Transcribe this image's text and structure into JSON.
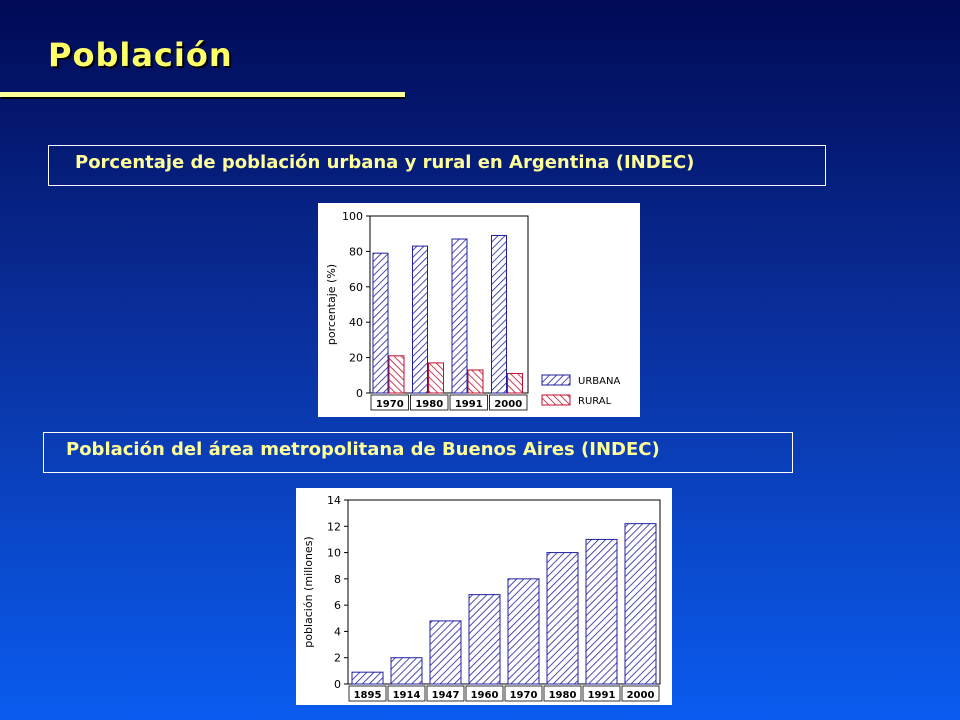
{
  "slide": {
    "title": "Población",
    "caption1": "Porcentaje de población urbana y rural en Argentina (INDEC)",
    "caption2": "Población del área metropolitana de Buenos Aires  (INDEC)"
  },
  "colors": {
    "title": "#ffff66",
    "caption": "#ffff99",
    "urbana": "#2020a0",
    "rural": "#c01030"
  },
  "chart_data": [
    {
      "type": "bar",
      "categories": [
        "1970",
        "1980",
        "1991",
        "2000"
      ],
      "series": [
        {
          "name": "URBANA",
          "values": [
            79,
            83,
            87,
            89
          ]
        },
        {
          "name": "RURAL",
          "values": [
            21,
            17,
            13,
            11
          ]
        }
      ],
      "ylabel": "porcentaje (%)",
      "ylim": [
        0,
        100
      ],
      "yticks": [
        "0",
        "20",
        "40",
        "60",
        "80",
        "100"
      ],
      "legend": "bottom-right",
      "grid": false
    },
    {
      "type": "bar",
      "categories": [
        "1895",
        "1914",
        "1947",
        "1960",
        "1970",
        "1980",
        "1991",
        "2000"
      ],
      "series": [
        {
          "values": [
            0.9,
            2.0,
            4.8,
            6.8,
            8.0,
            10.0,
            11.0,
            12.2
          ]
        }
      ],
      "ylabel": "población (millones)",
      "ylim": [
        0,
        14
      ],
      "yticks": [
        "0",
        "2",
        "4",
        "6",
        "8",
        "10",
        "12",
        "14"
      ],
      "grid": false
    }
  ]
}
